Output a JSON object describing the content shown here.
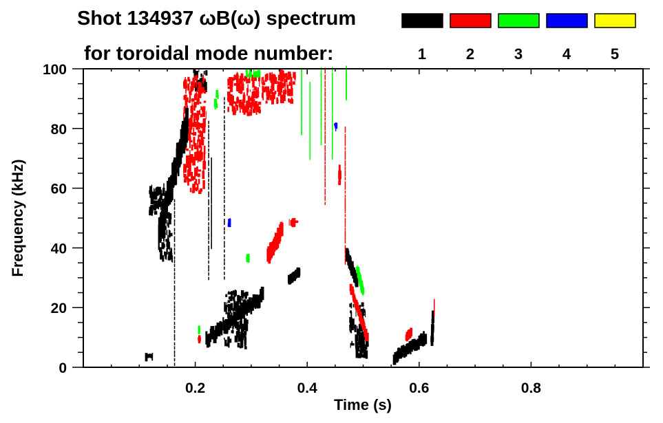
{
  "chart_data": {
    "type": "heatmap",
    "title_line1": "Shot 134937 ωB(ω) spectrum",
    "title_line2": "for toroidal mode number:",
    "xlabel": "Time (s)",
    "ylabel": "Frequency (kHz)",
    "xlim": [
      0.0,
      1.0
    ],
    "ylim": [
      0,
      100
    ],
    "x_ticks": [
      0.2,
      0.4,
      0.6,
      0.8
    ],
    "x_tick_labels": [
      "0.2",
      "0.4",
      "0.6",
      "0.8"
    ],
    "x_minor_step": 0.05,
    "y_ticks": [
      0,
      20,
      40,
      60,
      80,
      100
    ],
    "y_tick_labels": [
      "0",
      "20",
      "40",
      "60",
      "80",
      "100"
    ],
    "y_minor_step": 5,
    "legend": [
      {
        "mode": "1",
        "color": "#000000"
      },
      {
        "mode": "2",
        "color": "#ff0000"
      },
      {
        "mode": "3",
        "color": "#00ff00"
      },
      {
        "mode": "4",
        "color": "#0000ff"
      },
      {
        "mode": "5",
        "color": "#ffff00"
      }
    ],
    "patches": [
      {
        "mode": 1,
        "t": [
          0.117,
          0.148
        ],
        "f": [
          50,
          62
        ]
      },
      {
        "mode": 1,
        "t": [
          0.196,
          0.222
        ],
        "f": [
          92,
          100
        ]
      },
      {
        "mode": 1,
        "t": [
          0.251,
          0.295
        ],
        "f": [
          6,
          26
        ]
      },
      {
        "mode": 1,
        "t": [
          0.475,
          0.505
        ],
        "f": [
          5,
          22
        ]
      },
      {
        "mode": 1,
        "t": [
          0.485,
          0.512
        ],
        "f": [
          2,
          12
        ]
      },
      {
        "mode": 1,
        "t": [
          0.11,
          0.125
        ],
        "f": [
          3,
          5
        ]
      },
      {
        "mode": 1,
        "t": [
          0.135,
          0.16
        ],
        "f": [
          35,
          52
        ]
      },
      {
        "mode": 2,
        "t": [
          0.257,
          0.318
        ],
        "f": [
          84,
          99
        ]
      },
      {
        "mode": 2,
        "t": [
          0.318,
          0.38
        ],
        "f": [
          88,
          100
        ]
      },
      {
        "mode": 2,
        "t": [
          0.178,
          0.22
        ],
        "f": [
          58,
          98
        ]
      },
      {
        "mode": 2,
        "t": [
          0.367,
          0.385
        ],
        "f": [
          47,
          50
        ]
      },
      {
        "mode": 2,
        "t": [
          0.456,
          0.46
        ],
        "f": [
          61,
          68
        ]
      },
      {
        "mode": 2,
        "t": [
          0.205,
          0.21
        ],
        "f": [
          8,
          11
        ]
      },
      {
        "mode": 3,
        "t": [
          0.233,
          0.242
        ],
        "f": [
          86,
          93
        ]
      },
      {
        "mode": 3,
        "t": [
          0.288,
          0.318
        ],
        "f": [
          97,
          100
        ]
      },
      {
        "mode": 3,
        "t": [
          0.29,
          0.298
        ],
        "f": [
          35,
          38
        ]
      },
      {
        "mode": 3,
        "t": [
          0.205,
          0.208
        ],
        "f": [
          12,
          14
        ]
      },
      {
        "mode": 4,
        "t": [
          0.259,
          0.263
        ],
        "f": [
          47,
          50
        ]
      },
      {
        "mode": 4,
        "t": [
          0.45,
          0.453
        ],
        "f": [
          80,
          82
        ]
      }
    ],
    "streaks": [
      {
        "mode": 1,
        "from": [
          0.135,
          45
        ],
        "to": [
          0.185,
          81
        ],
        "spread": 4
      },
      {
        "mode": 1,
        "from": [
          0.22,
          9
        ],
        "to": [
          0.32,
          24
        ],
        "spread": 2
      },
      {
        "mode": 1,
        "from": [
          0.556,
          3
        ],
        "to": [
          0.611,
          10
        ],
        "spread": 1.5
      },
      {
        "mode": 1,
        "from": [
          0.623,
          8
        ],
        "to": [
          0.625,
          18
        ],
        "spread": 0.5
      },
      {
        "mode": 1,
        "from": [
          0.47,
          38
        ],
        "to": [
          0.49,
          28
        ],
        "spread": 1.5
      },
      {
        "mode": 1,
        "from": [
          0.163,
          1
        ],
        "to": [
          0.163,
          56
        ],
        "spread": 0.3
      },
      {
        "mode": 1,
        "from": [
          0.224,
          30
        ],
        "to": [
          0.224,
          82
        ],
        "spread": 0.3
      },
      {
        "mode": 1,
        "from": [
          0.229,
          40
        ],
        "to": [
          0.229,
          70
        ],
        "spread": 0.3
      },
      {
        "mode": 1,
        "from": [
          0.252,
          30
        ],
        "to": [
          0.252,
          90
        ],
        "spread": 0.3
      },
      {
        "mode": 1,
        "from": [
          0.367,
          29
        ],
        "to": [
          0.385,
          32
        ],
        "spread": 1
      },
      {
        "mode": 2,
        "from": [
          0.33,
          37
        ],
        "to": [
          0.355,
          46
        ],
        "spread": 2
      },
      {
        "mode": 2,
        "from": [
          0.478,
          27
        ],
        "to": [
          0.507,
          10
        ],
        "spread": 1
      },
      {
        "mode": 2,
        "from": [
          0.578,
          10
        ],
        "to": [
          0.586,
          12
        ],
        "spread": 0.8
      },
      {
        "mode": 2,
        "from": [
          0.627,
          18
        ],
        "to": [
          0.627,
          22
        ],
        "spread": 0.4
      },
      {
        "mode": 3,
        "from": [
          0.49,
          33
        ],
        "to": [
          0.5,
          25
        ],
        "spread": 0.8
      },
      {
        "mode": 3,
        "from": [
          0.39,
          78
        ],
        "to": [
          0.39,
          100
        ],
        "spread": 0.3
      },
      {
        "mode": 3,
        "from": [
          0.405,
          70
        ],
        "to": [
          0.405,
          95
        ],
        "spread": 0.3
      },
      {
        "mode": 3,
        "from": [
          0.425,
          75
        ],
        "to": [
          0.425,
          100
        ],
        "spread": 0.3
      },
      {
        "mode": 3,
        "from": [
          0.445,
          70
        ],
        "to": [
          0.445,
          100
        ],
        "spread": 0.3
      },
      {
        "mode": 3,
        "from": [
          0.47,
          90
        ],
        "to": [
          0.47,
          100
        ],
        "spread": 0.5
      },
      {
        "mode": 2,
        "from": [
          0.432,
          55
        ],
        "to": [
          0.432,
          100
        ],
        "spread": 0.3
      },
      {
        "mode": 2,
        "from": [
          0.468,
          35
        ],
        "to": [
          0.468,
          80
        ],
        "spread": 0.3
      }
    ]
  }
}
